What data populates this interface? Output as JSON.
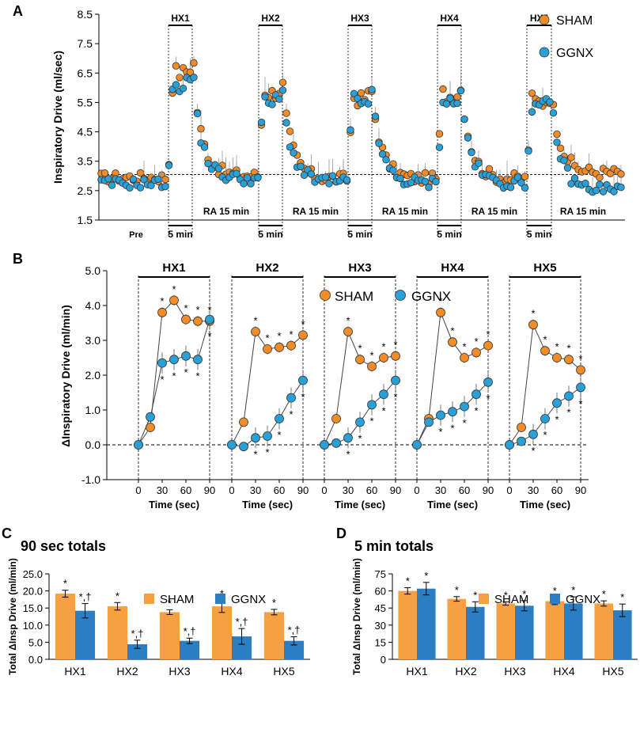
{
  "colors": {
    "sham": "#F28C28",
    "ggnx": "#29A0D8",
    "sham_bar": "#F7A043",
    "ggnx_bar": "#2B7EC1",
    "grid": "#000000"
  },
  "chart_data": [
    {
      "panel": "A",
      "type": "scatter",
      "ylabel": "Inspiratory Drive (ml/sec)",
      "ylim": [
        1.5,
        8.5
      ],
      "yticks": [
        "8.5",
        "7.5",
        "6.5",
        "5.5",
        "4.5",
        "3.5",
        "2.5",
        "1.5"
      ],
      "legend": [
        "SHAM",
        "GGNX"
      ],
      "baseline_y": 3.05,
      "hx_labels": [
        "HX1",
        "HX2",
        "HX3",
        "HX4",
        "HX5"
      ],
      "pre_label": "Pre",
      "hx_duration_label": "5 min",
      "ra_label": "RA 15 min",
      "series": [
        {
          "name": "SHAM",
          "pre": 2.95,
          "hx_peak": [
            6.8,
            6.1,
            5.9,
            6.0,
            5.8
          ],
          "ra_level": [
            3.0,
            2.9,
            2.9,
            2.9,
            3.1
          ]
        },
        {
          "name": "GGNX",
          "pre": 2.75,
          "hx_peak": [
            6.4,
            5.8,
            5.8,
            5.8,
            5.6
          ],
          "ra_level": [
            2.9,
            2.8,
            2.75,
            2.75,
            2.55
          ]
        }
      ]
    },
    {
      "panel": "B",
      "type": "line",
      "ylabel": "ΔInspiratory Drive (ml/min)",
      "ylim": [
        -1.0,
        5.0
      ],
      "yticks": [
        "5.0",
        "4.0",
        "3.0",
        "2.0",
        "1.0",
        "0.0",
        "-1.0"
      ],
      "xlabel": "Time (sec)",
      "x": [
        0,
        15,
        30,
        45,
        60,
        75,
        90
      ],
      "xticks": [
        "0",
        "30",
        "60",
        "90"
      ],
      "legend": [
        "SHAM",
        "GGNX"
      ],
      "subplots": [
        {
          "title": "HX1",
          "sham": [
            0,
            0.5,
            3.8,
            4.15,
            3.6,
            3.55,
            3.55
          ],
          "ggnx": [
            0,
            0.8,
            2.35,
            2.45,
            2.55,
            2.45,
            3.6
          ]
        },
        {
          "title": "HX2",
          "sham": [
            0,
            0.65,
            3.25,
            2.75,
            2.8,
            2.85,
            3.15
          ],
          "ggnx": [
            0,
            -0.05,
            0.2,
            0.25,
            0.75,
            1.35,
            1.85
          ]
        },
        {
          "title": "HX3",
          "sham": [
            0,
            0.75,
            3.25,
            2.45,
            2.25,
            2.5,
            2.55
          ],
          "ggnx": [
            0,
            0.05,
            0.2,
            0.65,
            1.15,
            1.45,
            1.85
          ]
        },
        {
          "title": "HX4",
          "sham": [
            0,
            0.75,
            3.8,
            2.95,
            2.5,
            2.65,
            2.85
          ],
          "ggnx": [
            0,
            0.65,
            0.85,
            0.95,
            1.1,
            1.45,
            1.8
          ]
        },
        {
          "title": "HX5",
          "sham": [
            0,
            0.5,
            3.45,
            2.7,
            2.5,
            2.45,
            2.15
          ],
          "ggnx": [
            0,
            0.1,
            0.3,
            0.75,
            1.2,
            1.4,
            1.65
          ]
        }
      ]
    },
    {
      "panel": "C",
      "type": "bar",
      "title": "90 sec totals",
      "ylabel": "Total ΔInsp Drive (ml/min)",
      "ylim": [
        0,
        25
      ],
      "yticks": [
        "0.0",
        "5.0",
        "10.0",
        "15.0",
        "20.0",
        "25.0"
      ],
      "categories": [
        "HX1",
        "HX2",
        "HX3",
        "HX4",
        "HX5"
      ],
      "series": [
        {
          "name": "SHAM",
          "values": [
            19.2,
            15.5,
            13.8,
            15.5,
            13.8
          ],
          "errors": [
            1.0,
            1.1,
            0.7,
            1.8,
            0.8
          ],
          "marks": [
            "*",
            "*",
            "*",
            "*",
            "*"
          ]
        },
        {
          "name": "GGNX",
          "values": [
            14.2,
            4.4,
            5.4,
            6.7,
            5.4
          ],
          "errors": [
            2.1,
            1.2,
            0.8,
            2.3,
            1.2
          ],
          "marks": [
            "*,†",
            "*,†",
            "*,†",
            "*,†",
            "*,†"
          ]
        }
      ]
    },
    {
      "panel": "D",
      "type": "bar",
      "title": "5 min totals",
      "ylabel": "Total ΔInsp Drive (ml/min)",
      "ylim": [
        0,
        75
      ],
      "yticks": [
        "0",
        "15",
        "30",
        "45",
        "60",
        "75"
      ],
      "categories": [
        "HX1",
        "HX2",
        "HX3",
        "HX4",
        "HX5"
      ],
      "series": [
        {
          "name": "SHAM",
          "values": [
            60,
            53,
            49,
            51,
            49
          ],
          "errors": [
            2.8,
            2.0,
            1.5,
            3.0,
            2.3
          ],
          "marks": [
            "*",
            "*",
            "*",
            "*",
            "*"
          ]
        },
        {
          "name": "GGNX",
          "values": [
            62,
            46,
            47,
            49,
            43
          ],
          "errors": [
            5.5,
            4.5,
            4.5,
            5.8,
            5.5
          ],
          "marks": [
            "*",
            "*",
            "*",
            "*",
            "*"
          ]
        }
      ]
    }
  ]
}
